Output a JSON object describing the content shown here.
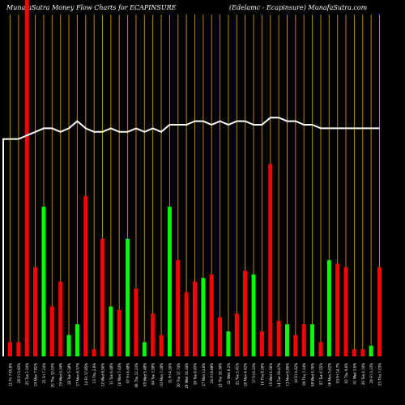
{
  "chart_data": {
    "type": "bar",
    "title": "MunafaSutra  Money Flow  Charts for ECAPINSURE",
    "subtitle": "(Edelamc -   Ecapinsure) MunafaSutra.com",
    "ylim": [
      0,
      100
    ],
    "grid": true,
    "categories": [
      "11 Fri 7 85.8%",
      "28 Fri 3.93%",
      "25 Tue 2.14%",
      "24 Mon 7.81%",
      "21 Fri 7.24%",
      "20 Thu 10.03%",
      "19 Wed 6.34%",
      "18 Tue 5.18%",
      "17 Mon 8.37%",
      "14 Fri 17.85%",
      "13 Thu 2.6%",
      "12 Wed 8.56%",
      "11 Tue 6.48%",
      "10 Mon 7.44%",
      "07 Fri 4.48%",
      "06 Thu 12.23%",
      "05 Wed 5.48%",
      "04 Tue 3.58%",
      "03 Mon 7.18%",
      "31 Fri 4.16%",
      "30 Thu 17.74%",
      "29 Wed 14.34%",
      "28 Tue 8.45%",
      "27 Mon 13.6%",
      "24 Fri 8.88%",
      "23 Thu 16.36%",
      "22 Wed 6.2%",
      "21 Tue 5.41%",
      "20 Mon 4.42%",
      "17 Fri 6.33%",
      "16 Thu 8.16%",
      "15 Wed 4.56%",
      "14 Tue 19.47%",
      "13 Mon 6.86%",
      "10 Fri 4.42%",
      "09 Thu 7.14%",
      "08 Wed 4.76%",
      "07 Tue 6.55%",
      "06 Mon 3.62%",
      "03 Fri 14.7%",
      "02 Thu 9.6%",
      "01 Wed 2.6%",
      "29 Tue 4.74%",
      "26 Fri 3.13%",
      "25 Thu 7.03%"
    ],
    "colors": [
      "red",
      "red",
      "red",
      "red",
      "green",
      "red",
      "red",
      "green",
      "green",
      "red",
      "red",
      "red",
      "green",
      "red",
      "green",
      "red",
      "green",
      "red",
      "red",
      "green",
      "red",
      "red",
      "red",
      "green",
      "red",
      "red",
      "green",
      "red",
      "red",
      "green",
      "red",
      "red",
      "red",
      "green",
      "red",
      "red",
      "green",
      "red",
      "green",
      "red",
      "red",
      "red",
      "red",
      "green",
      "red"
    ],
    "values": [
      4,
      4,
      100,
      25,
      42,
      14,
      21,
      6,
      9,
      45,
      2,
      33,
      14,
      13,
      33,
      19,
      4,
      12,
      6,
      42,
      27,
      18,
      21,
      22,
      23,
      11,
      7,
      12,
      24,
      23,
      7,
      54,
      10,
      9,
      6,
      9,
      9,
      4,
      27,
      26,
      25,
      2,
      2,
      3,
      25
    ],
    "line": [
      61,
      61,
      62,
      63,
      64,
      64,
      63,
      64,
      66,
      64,
      63,
      63,
      64,
      63,
      63,
      64,
      63,
      64,
      63,
      65,
      65,
      65,
      66,
      66,
      65,
      66,
      65,
      66,
      66,
      65,
      65,
      67,
      67,
      66,
      66,
      65,
      65,
      64,
      64,
      64,
      64,
      64,
      64,
      64,
      64
    ],
    "line_color": "#ffffff",
    "positive_color": "#00ff00",
    "negative_color": "#ff0000",
    "grid_color": "#b8860b"
  }
}
